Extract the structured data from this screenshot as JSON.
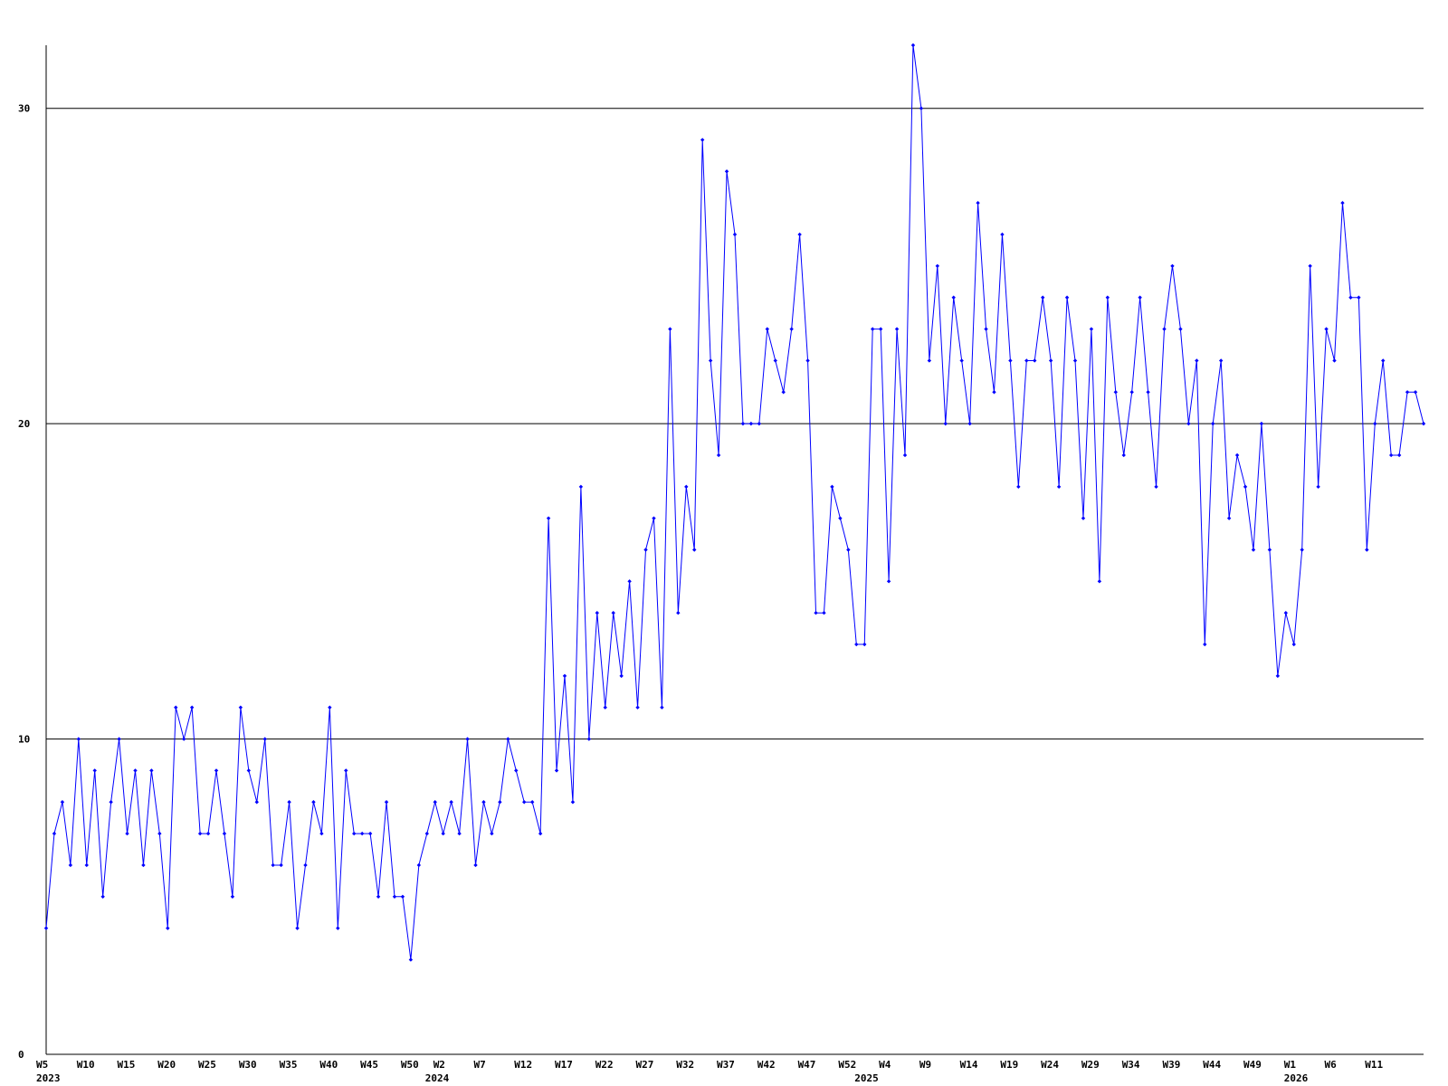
{
  "chart_data": {
    "type": "line",
    "title": "",
    "xlabel": "",
    "ylabel": "",
    "ylim": [
      0,
      32
    ],
    "y_ticks": [
      0,
      10,
      20,
      30
    ],
    "grid": "horizontal lines at y ticks",
    "legend": "none",
    "colors": {
      "line": "#0000ff",
      "axis": "#000000",
      "grid": "#000000",
      "background": "#ffffff"
    },
    "x_tick_labels": [
      {
        "index": 0,
        "label": "W5"
      },
      {
        "index": 5,
        "label": "W10"
      },
      {
        "index": 10,
        "label": "W15"
      },
      {
        "index": 15,
        "label": "W20"
      },
      {
        "index": 20,
        "label": "W25"
      },
      {
        "index": 25,
        "label": "W30"
      },
      {
        "index": 30,
        "label": "W35"
      },
      {
        "index": 35,
        "label": "W40"
      },
      {
        "index": 40,
        "label": "W45"
      },
      {
        "index": 45,
        "label": "W50"
      },
      {
        "index": 49,
        "label": "W2"
      },
      {
        "index": 54,
        "label": "W7"
      },
      {
        "index": 59,
        "label": "W12"
      },
      {
        "index": 64,
        "label": "W17"
      },
      {
        "index": 69,
        "label": "W22"
      },
      {
        "index": 74,
        "label": "W27"
      },
      {
        "index": 79,
        "label": "W32"
      },
      {
        "index": 84,
        "label": "W37"
      },
      {
        "index": 89,
        "label": "W42"
      },
      {
        "index": 94,
        "label": "W47"
      },
      {
        "index": 99,
        "label": "W52"
      },
      {
        "index": 104,
        "label": "W4"
      },
      {
        "index": 109,
        "label": "W9"
      },
      {
        "index": 114,
        "label": "W14"
      },
      {
        "index": 119,
        "label": "W19"
      },
      {
        "index": 124,
        "label": "W24"
      },
      {
        "index": 129,
        "label": "W29"
      },
      {
        "index": 134,
        "label": "W34"
      },
      {
        "index": 139,
        "label": "W39"
      },
      {
        "index": 144,
        "label": "W44"
      },
      {
        "index": 149,
        "label": "W49"
      },
      {
        "index": 154,
        "label": "W1"
      },
      {
        "index": 159,
        "label": "W6"
      },
      {
        "index": 164,
        "label": "W11"
      }
    ],
    "year_labels": [
      {
        "index": 0,
        "label": "2023"
      },
      {
        "index": 48,
        "label": "2024"
      },
      {
        "index": 101,
        "label": "2025"
      },
      {
        "index": 154,
        "label": "2026"
      }
    ],
    "series": [
      {
        "values": [
          4,
          7,
          8,
          6,
          10,
          6,
          9,
          5,
          8,
          10,
          7,
          9,
          6,
          9,
          7,
          4,
          11,
          10,
          11,
          7,
          7,
          9,
          7,
          5,
          11,
          9,
          8,
          10,
          6,
          6,
          8,
          4,
          6,
          8,
          7,
          11,
          4,
          9,
          7,
          7,
          7,
          5,
          8,
          5,
          5,
          3,
          6,
          7,
          8,
          7,
          8,
          7,
          10,
          6,
          8,
          7,
          8,
          10,
          9,
          8,
          8,
          7,
          17,
          9,
          12,
          8,
          18,
          10,
          14,
          11,
          14,
          12,
          15,
          11,
          16,
          17,
          11,
          23,
          14,
          18,
          16,
          29,
          22,
          19,
          28,
          26,
          20,
          20,
          20,
          23,
          22,
          21,
          23,
          26,
          22,
          14,
          14,
          18,
          17,
          16,
          13,
          13,
          23,
          23,
          15,
          23,
          19,
          32,
          30,
          22,
          25,
          20,
          24,
          22,
          20,
          27,
          23,
          21,
          26,
          22,
          18,
          22,
          22,
          24,
          22,
          18,
          24,
          22,
          17,
          23,
          15,
          24,
          21,
          19,
          21,
          24,
          21,
          18,
          23,
          25,
          23,
          20,
          22,
          13,
          20,
          22,
          17,
          19,
          18,
          16,
          20,
          16,
          12,
          14,
          13,
          16,
          25,
          18,
          23,
          22,
          27,
          24,
          24,
          16,
          20,
          22,
          19,
          19,
          21,
          21,
          20
        ]
      }
    ]
  }
}
